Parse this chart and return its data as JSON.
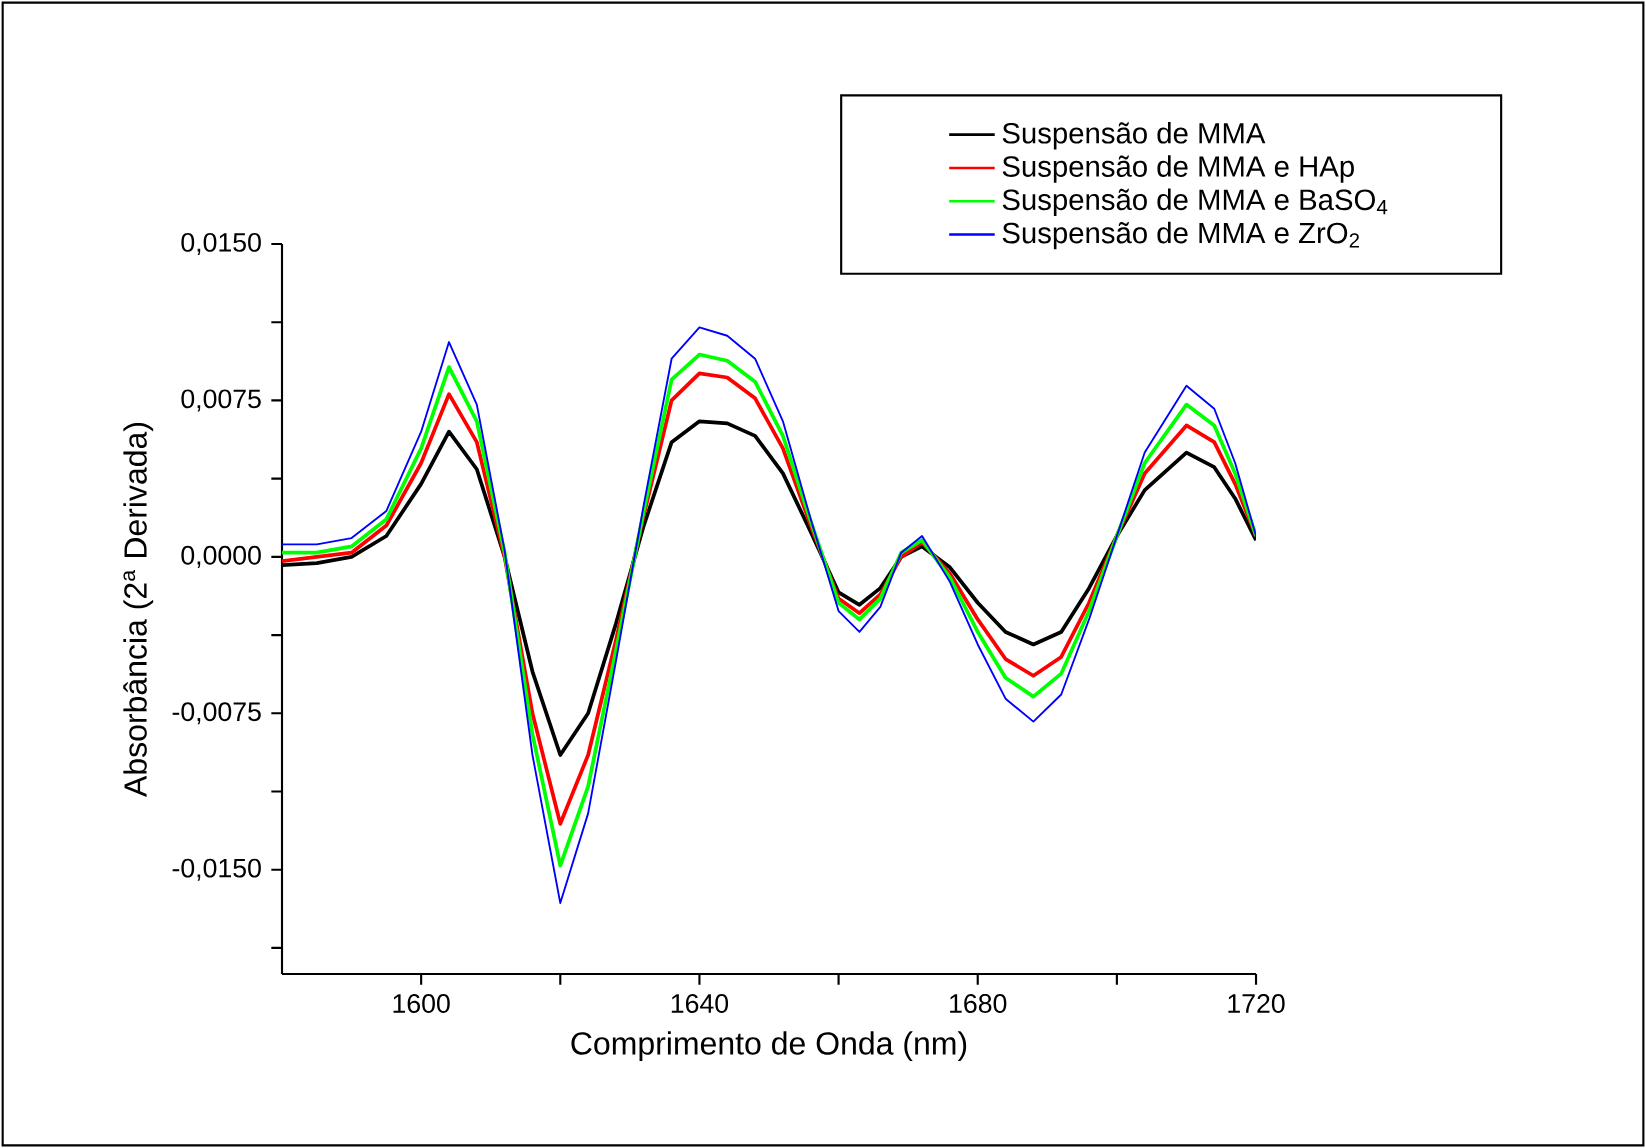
{
  "chart_data": {
    "type": "line",
    "xlabel": "Comprimento de Onda (nm)",
    "ylabel": "Absorbância (2$^{a}$ Derivada)",
    "x": [
      1580,
      1585,
      1590,
      1595,
      1600,
      1604,
      1608,
      1612,
      1616,
      1620,
      1624,
      1628,
      1632,
      1636,
      1640,
      1644,
      1648,
      1652,
      1656,
      1660,
      1663,
      1666,
      1669,
      1672,
      1676,
      1680,
      1684,
      1688,
      1692,
      1696,
      1700,
      1704,
      1710,
      1714,
      1717,
      1720
    ],
    "series": [
      {
        "name": "Suspensão de MMA",
        "color": "#000000",
        "values": [
          -0.0004,
          -0.0003,
          0.0,
          0.001,
          0.0035,
          0.006,
          0.0042,
          0.0,
          -0.0055,
          -0.0095,
          -0.0075,
          -0.0032,
          0.0015,
          0.0055,
          0.0065,
          0.0064,
          0.0058,
          0.004,
          0.0012,
          -0.0017,
          -0.0023,
          -0.0015,
          0.0,
          0.0005,
          -0.0005,
          -0.0022,
          -0.0036,
          -0.0042,
          -0.0036,
          -0.0015,
          0.001,
          0.0032,
          0.005,
          0.0043,
          0.0028,
          0.0008
        ]
      },
      {
        "name": "Suspensão de MMA e HAp",
        "color": "#ff0000",
        "values": [
          -0.0002,
          0.0,
          0.0002,
          0.0015,
          0.0045,
          0.0078,
          0.0055,
          0.0,
          -0.0075,
          -0.0128,
          -0.0095,
          -0.004,
          0.002,
          0.0075,
          0.0088,
          0.0086,
          0.0076,
          0.0052,
          0.0015,
          -0.002,
          -0.0027,
          -0.0018,
          0.0,
          0.0007,
          -0.0008,
          -0.003,
          -0.0049,
          -0.0057,
          -0.0048,
          -0.0022,
          0.001,
          0.004,
          0.0063,
          0.0055,
          0.0035,
          0.001
        ]
      },
      {
        "name": "Suspensão de MMA e BaSO$_{4}$",
        "color": "#00ff00",
        "values": [
          0.0002,
          0.0002,
          0.0005,
          0.0018,
          0.0052,
          0.0091,
          0.0065,
          0.0002,
          -0.0085,
          -0.0148,
          -0.011,
          -0.0045,
          0.0022,
          0.0085,
          0.0097,
          0.0094,
          0.0084,
          0.0058,
          0.0017,
          -0.0022,
          -0.003,
          -0.002,
          0.0002,
          0.0008,
          -0.001,
          -0.0036,
          -0.0058,
          -0.0067,
          -0.0056,
          -0.0026,
          0.001,
          0.0045,
          0.0073,
          0.0063,
          0.004,
          0.001
        ]
      },
      {
        "name": "Suspensão de MMA e ZrO$_{2}$",
        "color": "#0000ff",
        "values": [
          0.0006,
          0.0006,
          0.0009,
          0.0022,
          0.006,
          0.0103,
          0.0073,
          0.0003,
          -0.0095,
          -0.0166,
          -0.0123,
          -0.005,
          0.0025,
          0.0095,
          0.011,
          0.0106,
          0.0095,
          0.0065,
          0.0018,
          -0.0026,
          -0.0036,
          -0.0024,
          0.0002,
          0.001,
          -0.0012,
          -0.0042,
          -0.0068,
          -0.0079,
          -0.0066,
          -0.003,
          0.001,
          0.005,
          0.0082,
          0.0071,
          0.0045,
          0.001
        ]
      }
    ],
    "xlim": [
      1580,
      1720
    ],
    "ylim": [
      -0.02,
      0.015
    ],
    "xticks": [
      1600,
      {
        "value": 1620,
        "label": null
      },
      1640,
      {
        "value": 1660,
        "label": null
      },
      1680,
      {
        "value": 1700,
        "label": null
      },
      1720
    ],
    "yticks": [
      {
        "value": -0.01875,
        "label": null
      },
      {
        "value": -0.015,
        "label": "-0,0150"
      },
      {
        "value": -0.01125,
        "label": null
      },
      {
        "value": -0.0075,
        "label": "-0,0075"
      },
      {
        "value": -0.00375,
        "label": null
      },
      {
        "value": 0,
        "label": "0,0000"
      },
      {
        "value": 0.00375,
        "label": null
      },
      {
        "value": 0.0075,
        "label": "0,0075"
      },
      {
        "value": 0.01125,
        "label": null
      },
      {
        "value": 0.015,
        "label": "0,0150"
      }
    ],
    "grid": false,
    "legend": "top right",
    "line_style": "solid",
    "marker": "none"
  }
}
